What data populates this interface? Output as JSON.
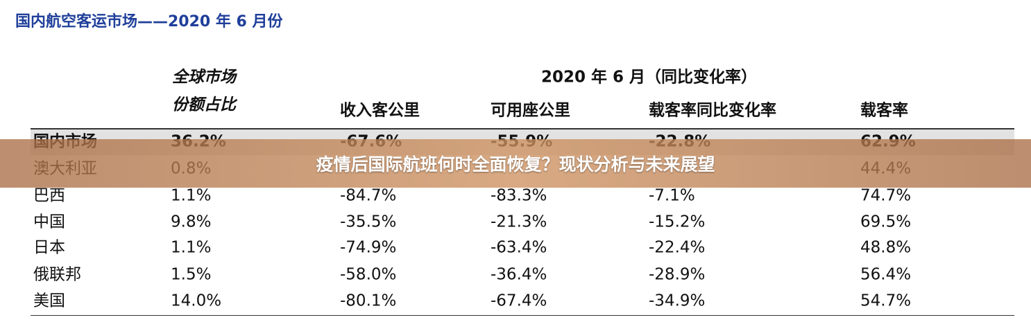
{
  "header": {
    "title": "国内航空客运市场——2020 年 6 月份"
  },
  "table": {
    "share_header": [
      "全球市场",
      "份额占比"
    ],
    "group_header": "2020 年 6 月（同比变化率）",
    "columns": [
      "收入客公里",
      "可用座公里",
      "载客率同比变化率",
      "载客率"
    ],
    "rows": [
      [
        "国内市场",
        "36.2%",
        "-67.6%",
        "-55.9%",
        "-22.8%",
        "62.9%"
      ],
      [
        "澳大利亚",
        "0.8%",
        null,
        null,
        null,
        "44.4%"
      ],
      [
        "巴西",
        "1.1%",
        "-84.7%",
        "-83.3%",
        "-7.1%",
        "74.7%"
      ],
      [
        "中国",
        "9.8%",
        "-35.5%",
        "-21.3%",
        "-15.2%",
        "69.5%"
      ],
      [
        "日本",
        "1.1%",
        "-74.9%",
        "-63.4%",
        "-22.4%",
        "48.8%"
      ],
      [
        "俄联邦",
        "1.5%",
        "-58.0%",
        "-36.4%",
        "-28.9%",
        "56.4%"
      ],
      [
        "美国",
        "14.0%",
        "-80.1%",
        "-67.4%",
        "-34.9%",
        "54.7%"
      ]
    ]
  },
  "banner": {
    "text": "疫情后国际航班何时全面恢复？现状分析与未来展望"
  }
}
